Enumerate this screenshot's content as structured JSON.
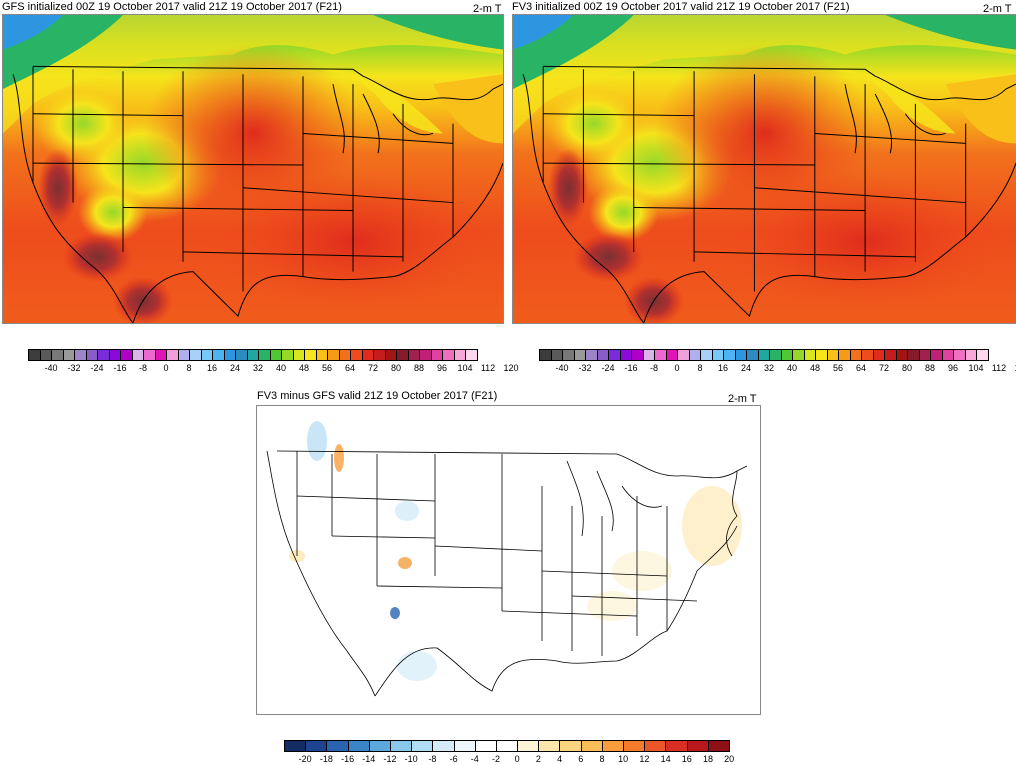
{
  "panels": {
    "gfs": {
      "title": "GFS initialized 00Z 19 October 2017 valid 21Z 19 October 2017 (F21)",
      "variable": "2-m T"
    },
    "fv3": {
      "title": "FV3 initialized 00Z 19 October 2017 valid 21Z 19 October 2017 (F21)",
      "variable": "2-m T"
    },
    "diff": {
      "title": "FV3 minus GFS valid 21Z 19 October 2017 (F21)",
      "variable": "2-m T"
    }
  },
  "temp_colorbar": {
    "colors": [
      "#3c3c3c",
      "#5a5a5a",
      "#787878",
      "#9a9a9a",
      "#9c84c8",
      "#8a5cc8",
      "#7a2cd8",
      "#8a0ad8",
      "#b000c8",
      "#d8b4e8",
      "#ec6ad0",
      "#e014b4",
      "#f0a0d8",
      "#b0b0f0",
      "#a8d0f8",
      "#78c8f8",
      "#4cb4f0",
      "#2c96e0",
      "#2c8cc0",
      "#20a8a0",
      "#28b464",
      "#50c834",
      "#96d828",
      "#d8e620",
      "#f6e41c",
      "#f8c018",
      "#f69a18",
      "#f2721c",
      "#ee4c1c",
      "#e02c1c",
      "#c41c1c",
      "#a41414",
      "#861a2a",
      "#a02050",
      "#c02078",
      "#e040a0",
      "#f070c0",
      "#f8a8d8",
      "#fcd8ee"
    ],
    "labels": [
      "-40",
      "-32",
      "-24",
      "-16",
      "-8",
      "0",
      "8",
      "16",
      "24",
      "32",
      "40",
      "48",
      "56",
      "64",
      "72",
      "80",
      "88",
      "96",
      "104",
      "112",
      "120"
    ]
  },
  "diff_colorbar": {
    "colors": [
      "#142c64",
      "#1c4490",
      "#2a64b0",
      "#3c84c8",
      "#5ca8dc",
      "#88c8ec",
      "#b0dcf4",
      "#d4ecf8",
      "#eef6fc",
      "#ffffff",
      "#ffffff",
      "#fdf4d8",
      "#fde6ac",
      "#fcd480",
      "#fbbd58",
      "#f99c3c",
      "#f47a2c",
      "#ea5628",
      "#d82e24",
      "#b8181c",
      "#8c1016"
    ],
    "labels": [
      "-20",
      "-18",
      "-16",
      "-14",
      "-12",
      "-10",
      "-8",
      "-6",
      "-4",
      "-2",
      "0",
      "2",
      "4",
      "6",
      "8",
      "10",
      "12",
      "14",
      "16",
      "18",
      "20"
    ]
  }
}
